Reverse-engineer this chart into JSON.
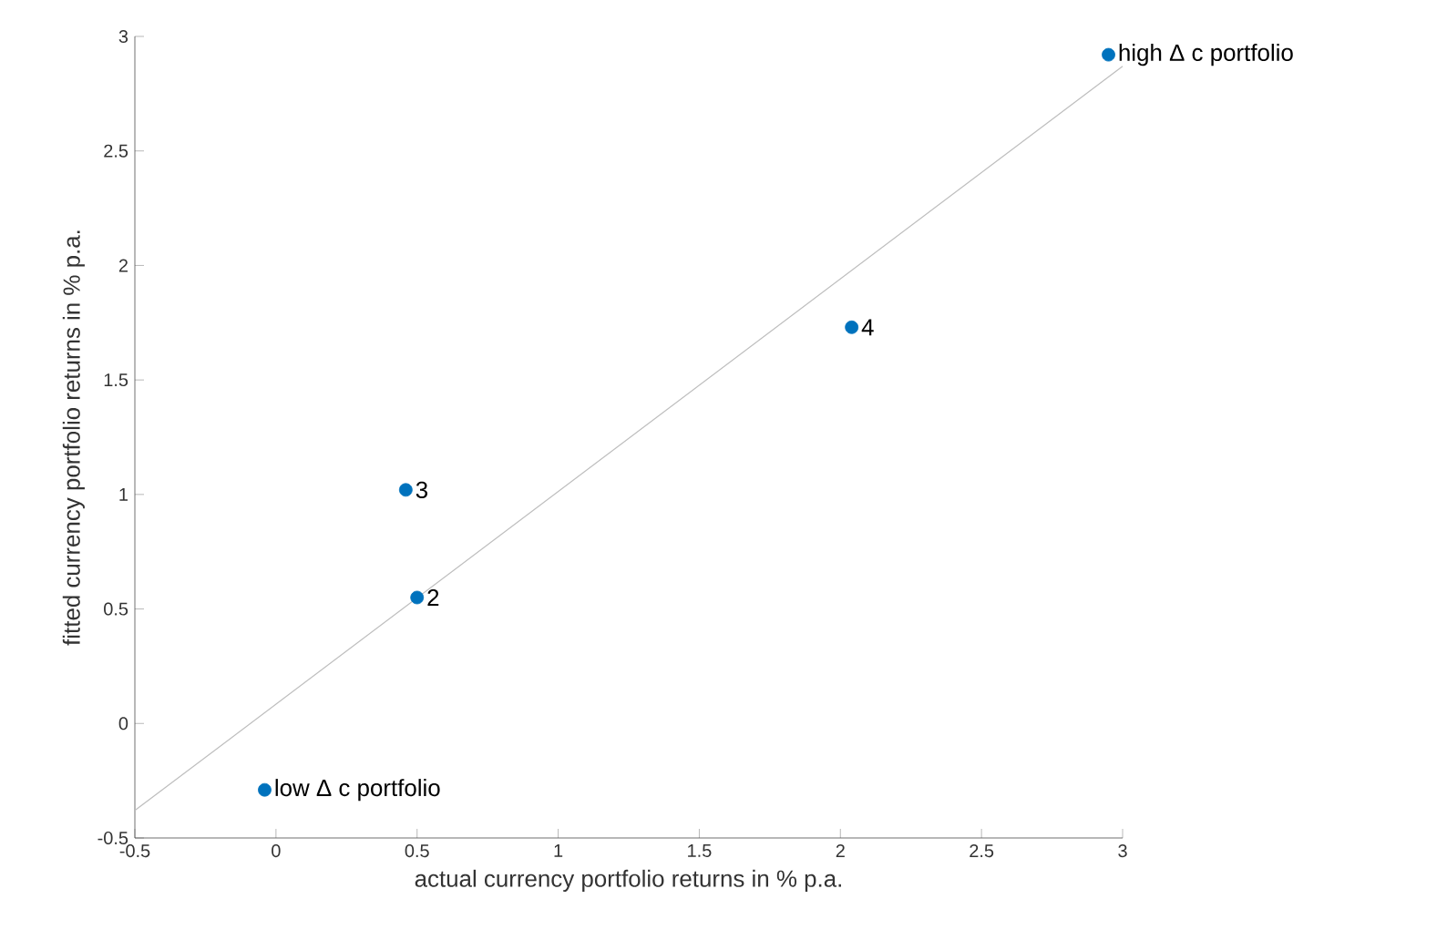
{
  "chart_data": {
    "type": "scatter",
    "xlabel": "actual currency portfolio returns in % p.a.",
    "ylabel": "fitted currency portfolio returns in % p.a.",
    "xlim": [
      -0.5,
      3
    ],
    "ylim": [
      -0.5,
      3
    ],
    "xticks": [
      -0.5,
      0,
      0.5,
      1,
      1.5,
      2,
      2.5,
      3
    ],
    "yticks": [
      -0.5,
      0,
      0.5,
      1,
      1.5,
      2,
      2.5,
      3
    ],
    "grid": false,
    "marker": "circle",
    "series": [
      {
        "type": "line",
        "marker": "none",
        "color": "#bdbdbd",
        "x": [
          -0.5,
          3
        ],
        "values": [
          -0.38,
          2.87
        ]
      },
      {
        "color": "#0072bd",
        "x": [
          -0.04,
          0.5,
          0.46,
          2.04,
          2.95
        ],
        "values": [
          -0.29,
          0.55,
          1.02,
          1.73,
          2.92
        ]
      }
    ],
    "annotations": [
      {
        "text": "low  Δ c portfolio",
        "x": -0.04,
        "y": -0.29
      },
      {
        "text": "2",
        "x": 0.5,
        "y": 0.55
      },
      {
        "text": "3",
        "x": 0.46,
        "y": 1.02
      },
      {
        "text": "4",
        "x": 2.04,
        "y": 1.73
      },
      {
        "text": "high  Δ c portfolio",
        "x": 2.95,
        "y": 2.92
      }
    ]
  }
}
